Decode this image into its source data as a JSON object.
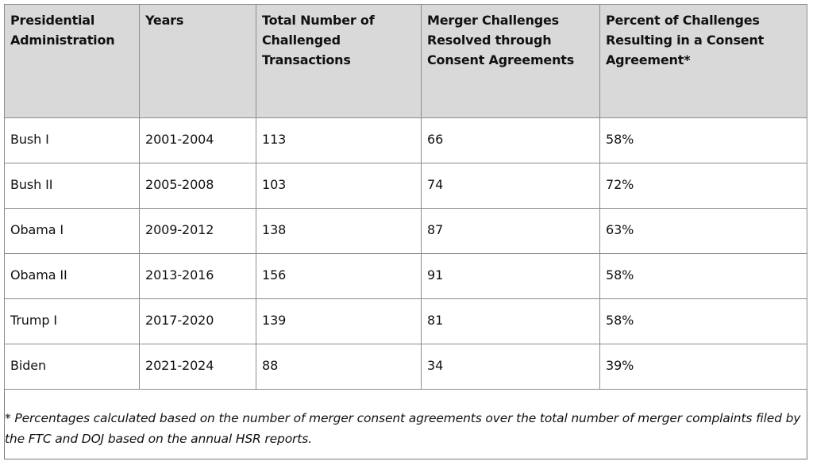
{
  "table": {
    "headers": [
      "Presidential Administration",
      "Years",
      "Total Number of Challenged Transactions",
      "Merger Challenges Resolved through Consent Agreements",
      "Percent of Challenges Resulting in a Consent Agreement*"
    ],
    "rows": [
      [
        "Bush I",
        "2001-2004",
        "113",
        "66",
        "58%"
      ],
      [
        "Bush II",
        "2005-2008",
        "103",
        "74",
        "72%"
      ],
      [
        "Obama I",
        "2009-2012",
        "138",
        "87",
        "63%"
      ],
      [
        "Obama II",
        "2013-2016",
        "156",
        "91",
        "58%"
      ],
      [
        "Trump I",
        "2017-2020",
        "139",
        "81",
        "58%"
      ],
      [
        "Biden",
        "2021-2024",
        "88",
        "34",
        "39%"
      ]
    ]
  },
  "footnote": "* Percentages calculated based on the number of merger consent agreements over the total number of merger complaints filed by the FTC and DOJ based on the annual HSR reports."
}
